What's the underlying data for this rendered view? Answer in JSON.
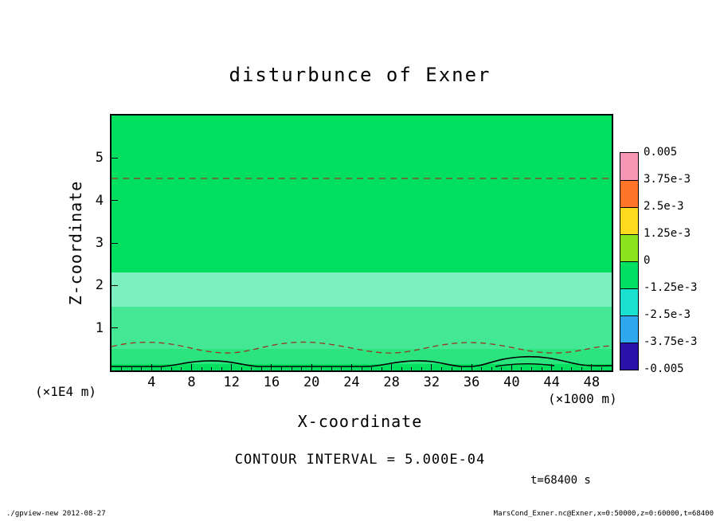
{
  "title": "disturbunce of Exner",
  "axes": {
    "x_label": "X-coordinate",
    "x_unit": "(×1000 m)",
    "x_ticks": [
      "4",
      "8",
      "12",
      "16",
      "20",
      "24",
      "28",
      "32",
      "36",
      "40",
      "44",
      "48"
    ],
    "y_label": "Z-coordinate",
    "y_unit": "(×1E4 m)",
    "y_ticks": [
      "1",
      "2",
      "3",
      "4",
      "5"
    ]
  },
  "colorbar": {
    "labels": [
      "0.005",
      "3.75e-3",
      "2.5e-3",
      "1.25e-3",
      "0",
      "-1.25e-3",
      "-2.5e-3",
      "-3.75e-3",
      "-0.005"
    ],
    "colors": [
      "#f897b5",
      "#ff7426",
      "#ffd91e",
      "#8ce41e",
      "#00e163",
      "#19e0cf",
      "#2fa8f0",
      "#2a12a8"
    ]
  },
  "notes": {
    "contour_interval": "CONTOUR INTERVAL = 5.000E-04",
    "time": "t=68400 s"
  },
  "footer": {
    "left": "./gpview-new  2012-08-27",
    "right": "MarsCond_Exner.nc@Exner,x=0:50000,z=0:60000,t=68400"
  },
  "chart_data": {
    "type": "heatmap",
    "title": "disturbunce of Exner",
    "xlabel": "X-coordinate (×1000 m)",
    "ylabel": "Z-coordinate (×1E4 m)",
    "x_range": [
      0,
      50
    ],
    "z_range": [
      0,
      6
    ],
    "x_ticks": [
      4,
      8,
      12,
      16,
      20,
      24,
      28,
      32,
      36,
      40,
      44,
      48
    ],
    "z_ticks": [
      1,
      2,
      3,
      4,
      5
    ],
    "contour_interval": 0.0005,
    "time_seconds": 68400,
    "colorbar_levels": [
      0.005,
      0.00375,
      0.0025,
      0.00125,
      0,
      -0.00125,
      -0.0025,
      -0.00375,
      -0.005
    ],
    "fill_bands": [
      {
        "z_from": 2.3,
        "z_to": 6.0,
        "color": "#00e05e",
        "note": "near-zero disturbance (main field)"
      },
      {
        "z_from": 1.5,
        "z_to": 2.3,
        "color": "#7cefbf",
        "note": "lightest mint band"
      },
      {
        "z_from": 0.5,
        "z_to": 1.5,
        "color": "#44e793",
        "note": "light green layer"
      },
      {
        "z_from": 0.15,
        "z_to": 0.5,
        "color": "#2ce47e",
        "note": "pale layer below wavy dashed contour"
      },
      {
        "z_from": 0.0,
        "z_to": 0.15,
        "color": "#00e05e",
        "note": "surface strip with black contour bumps"
      }
    ],
    "contours": [
      {
        "style": "dashed",
        "color": "#993322",
        "z_mean": 4.5,
        "shape": "straight horizontal line across full width"
      },
      {
        "style": "dashed",
        "color": "#993322",
        "z_mean": 0.55,
        "shape": "gently wavy line with ~4-5 low crests"
      },
      {
        "style": "solid",
        "color": "#000000",
        "z_mean": 0.1,
        "shape": "surface-hugging bumps near x≈7-13, 26-34, 37-50"
      }
    ],
    "legend_position": "right",
    "grid": false
  }
}
